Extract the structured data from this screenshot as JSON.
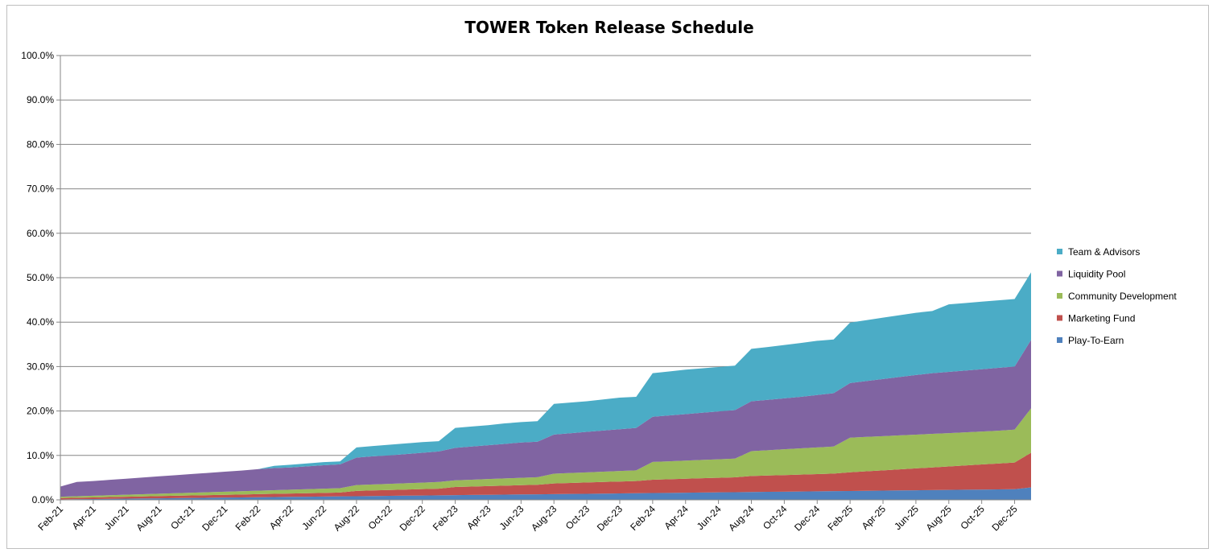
{
  "chart_data": {
    "type": "area",
    "stacked": true,
    "title": "TOWER Token Release Schedule",
    "xlabel": "",
    "ylabel": "",
    "ylim": [
      0,
      100
    ],
    "y_tick_labels": [
      "0.0%",
      "10.0%",
      "20.0%",
      "30.0%",
      "40.0%",
      "50.0%",
      "60.0%",
      "70.0%",
      "80.0%",
      "90.0%",
      "100.0%"
    ],
    "grid": "horizontal",
    "legend_position": "right",
    "x_tick_labels": [
      "Feb-21",
      "Apr-21",
      "Jun-21",
      "Aug-21",
      "Oct-21",
      "Dec-21",
      "Feb-22",
      "Apr-22",
      "Jun-22",
      "Aug-22",
      "Oct-22",
      "Dec-22",
      "Feb-23",
      "Apr-23",
      "Jun-23",
      "Aug-23",
      "Oct-23",
      "Dec-23",
      "Feb-24",
      "Apr-24",
      "Jun-24",
      "Aug-24",
      "Oct-24",
      "Dec-24",
      "Feb-25",
      "Apr-25",
      "Jun-25",
      "Aug-25",
      "Oct-25",
      "Dec-25"
    ],
    "x": [
      "Feb-21",
      "Mar-21",
      "Apr-21",
      "May-21",
      "Jun-21",
      "Jul-21",
      "Aug-21",
      "Sep-21",
      "Oct-21",
      "Nov-21",
      "Dec-21",
      "Jan-22",
      "Feb-22",
      "Mar-22",
      "Apr-22",
      "May-22",
      "Jun-22",
      "Jul-22",
      "Aug-22",
      "Sep-22",
      "Oct-22",
      "Nov-22",
      "Dec-22",
      "Jan-23",
      "Feb-23",
      "Mar-23",
      "Apr-23",
      "May-23",
      "Jun-23",
      "Jul-23",
      "Aug-23",
      "Sep-23",
      "Oct-23",
      "Nov-23",
      "Dec-23",
      "Jan-24",
      "Feb-24",
      "Mar-24",
      "Apr-24",
      "May-24",
      "Jun-24",
      "Jul-24",
      "Aug-24",
      "Sep-24",
      "Oct-24",
      "Nov-24",
      "Dec-24",
      "Jan-25",
      "Feb-25",
      "Mar-25",
      "Apr-25",
      "May-25",
      "Jun-25",
      "Jul-25",
      "Aug-25",
      "Sep-25",
      "Oct-25",
      "Nov-25",
      "Dec-25",
      "Jan-26"
    ],
    "series": [
      {
        "name": "Play-To-Earn",
        "color": "#4f81bd",
        "values": [
          0.1,
          0.15,
          0.19,
          0.23,
          0.27,
          0.31,
          0.35,
          0.39,
          0.43,
          0.47,
          0.51,
          0.55,
          0.59,
          0.63,
          0.67,
          0.71,
          0.75,
          0.79,
          0.82,
          0.86,
          0.9,
          0.94,
          0.98,
          1.02,
          1.06,
          1.1,
          1.14,
          1.18,
          1.22,
          1.25,
          1.29,
          1.33,
          1.37,
          1.41,
          1.45,
          1.49,
          1.53,
          1.57,
          1.61,
          1.65,
          1.69,
          1.73,
          1.76,
          1.8,
          1.84,
          1.88,
          1.92,
          1.96,
          2,
          2.04,
          2.08,
          2.12,
          2.16,
          2.2,
          2.24,
          2.28,
          2.32,
          2.36,
          2.4,
          2.8
        ]
      },
      {
        "name": "Marketing Fund",
        "color": "#c0504d",
        "values": [
          0.3,
          0.33,
          0.36,
          0.4,
          0.43,
          0.46,
          0.5,
          0.53,
          0.56,
          0.59,
          0.63,
          0.66,
          0.69,
          0.72,
          0.76,
          0.79,
          0.82,
          0.86,
          1.2,
          1.26,
          1.32,
          1.38,
          1.44,
          1.5,
          1.84,
          1.9,
          1.96,
          2.02,
          2.08,
          2.14,
          2.4,
          2.47,
          2.54,
          2.61,
          2.68,
          2.75,
          3,
          3.07,
          3.14,
          3.21,
          3.28,
          3.35,
          3.6,
          3.67,
          3.74,
          3.81,
          3.88,
          3.95,
          4.2,
          4.38,
          4.56,
          4.74,
          4.92,
          5.1,
          5.28,
          5.46,
          5.64,
          5.82,
          6,
          7.8
        ]
      },
      {
        "name": "Community Development",
        "color": "#9bbb59",
        "values": [
          0.3,
          0.34,
          0.38,
          0.42,
          0.46,
          0.5,
          0.54,
          0.58,
          0.62,
          0.66,
          0.7,
          0.74,
          0.78,
          0.82,
          0.86,
          0.9,
          0.94,
          0.98,
          1.3,
          1.34,
          1.38,
          1.42,
          1.46,
          1.5,
          1.5,
          1.54,
          1.58,
          1.62,
          1.66,
          1.7,
          2.2,
          2.24,
          2.28,
          2.32,
          2.36,
          2.4,
          4,
          4.04,
          4.08,
          4.12,
          4.16,
          4.2,
          5.6,
          5.7,
          5.8,
          5.9,
          6,
          6.1,
          7.8,
          7.75,
          7.7,
          7.65,
          7.6,
          7.55,
          7.5,
          7.46,
          7.42,
          7.38,
          7.4,
          10
        ]
      },
      {
        "name": "Liquidity Pool",
        "color": "#8064a2",
        "values": [
          2.3,
          3.2,
          3.3,
          3.45,
          3.6,
          3.75,
          3.9,
          4.05,
          4.2,
          4.35,
          4.5,
          4.65,
          4.84,
          4.99,
          5.01,
          5.14,
          5.29,
          5.37,
          6.18,
          6.34,
          6.4,
          6.56,
          6.72,
          6.88,
          7.3,
          7.46,
          7.62,
          7.78,
          7.94,
          8.01,
          8.81,
          8.96,
          9.11,
          9.26,
          9.41,
          9.56,
          10.17,
          10.32,
          10.47,
          10.62,
          10.77,
          10.92,
          11.24,
          11.33,
          11.46,
          11.61,
          11.8,
          11.99,
          12.3,
          12.58,
          12.86,
          13.14,
          13.42,
          13.65,
          13.78,
          13.9,
          14.02,
          14.14,
          14.2,
          15.4
        ]
      },
      {
        "name": "Team & Advisors",
        "color": "#4bacc6",
        "values": [
          0,
          0,
          0,
          0,
          0,
          0,
          0,
          0,
          0,
          0,
          0,
          0,
          0,
          0.5,
          0.6,
          0.65,
          0.7,
          0.65,
          2.3,
          2.31,
          2.4,
          2.4,
          2.4,
          2.3,
          4.5,
          4.51,
          4.5,
          4.6,
          4.6,
          4.6,
          6.9,
          6.9,
          6.9,
          7,
          7.1,
          7,
          9.8,
          9.9,
          10,
          10,
          10,
          10,
          11.8,
          11.9,
          12,
          12.1,
          12.2,
          12.1,
          13.6,
          13.7,
          13.8,
          13.9,
          14,
          14,
          15.2,
          15.2,
          15.2,
          15.2,
          15.2,
          15.2
        ]
      }
    ]
  }
}
